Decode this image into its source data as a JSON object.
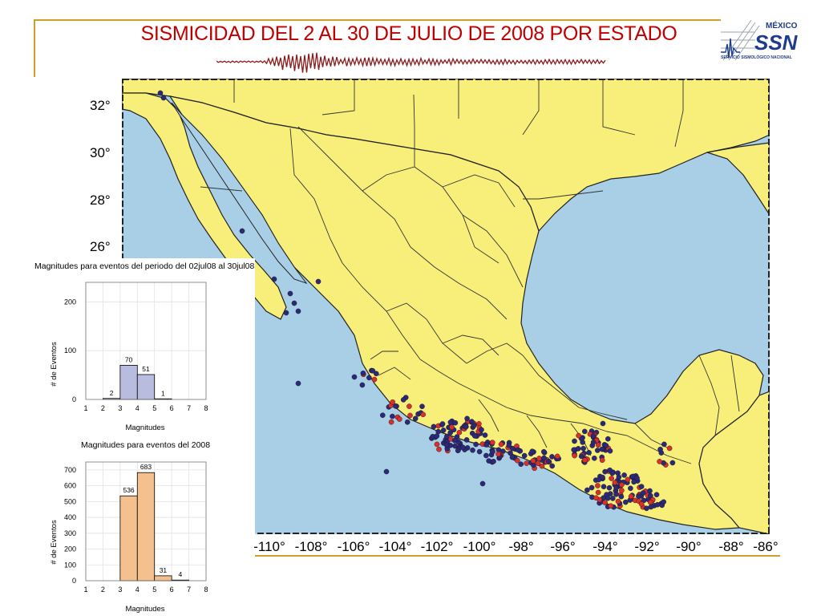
{
  "title": "SISMICIDAD DEL 2 AL 30 DE JULIO DE 2008 POR ESTADO",
  "logo": {
    "country": "MÉXICO",
    "acronym": "SSN",
    "name": "SERVICIO SISMOLÓGICO NACIONAL"
  },
  "map": {
    "latitude_labels": [
      "32°",
      "30°",
      "28°",
      "26°"
    ],
    "longitude_labels": [
      "-110°",
      "-108°",
      "-106°",
      "-104°",
      "-102°",
      "-100°",
      "-98°",
      "-96°",
      "-94°",
      "-92°",
      "-90°",
      "-88°",
      "-86°"
    ],
    "colors": {
      "land": "#f7ef7a",
      "water": "#a9cfe6",
      "event_blue": "#2c2a78",
      "event_red": "#d9302c",
      "border": "#222222"
    }
  },
  "chart_data": [
    {
      "type": "bar",
      "title": "Magnitudes para eventos del periodo del 02jul08 al 30jul08",
      "xlabel": "Magnitudes",
      "ylabel": "# de Eventos",
      "x_ticks": [
        "1",
        "2",
        "3",
        "4",
        "5",
        "6",
        "7",
        "8"
      ],
      "y_ticks": [
        "0",
        "100",
        "200"
      ],
      "bin_edges": [
        2,
        3,
        4,
        5,
        6
      ],
      "values": [
        2,
        70,
        51,
        1
      ],
      "value_labels": [
        "2",
        "70",
        "51",
        "1"
      ],
      "ylim": [
        0,
        240
      ],
      "xlim": [
        1,
        8
      ],
      "color": "#b8bde0"
    },
    {
      "type": "bar",
      "title": "Magnitudes para eventos del 2008",
      "xlabel": "Magnitudes",
      "ylabel": "# de Eventos",
      "x_ticks": [
        "1",
        "2",
        "3",
        "4",
        "5",
        "6",
        "7",
        "8"
      ],
      "y_ticks": [
        "0",
        "100",
        "200",
        "300",
        "400",
        "500",
        "600",
        "700"
      ],
      "bin_edges": [
        3,
        4,
        5,
        6,
        7
      ],
      "values": [
        536,
        683,
        31,
        4
      ],
      "value_labels": [
        "536",
        "683",
        "31",
        "4"
      ],
      "ylim": [
        0,
        750
      ],
      "xlim": [
        1,
        8
      ],
      "color": "#f4c08e"
    }
  ]
}
